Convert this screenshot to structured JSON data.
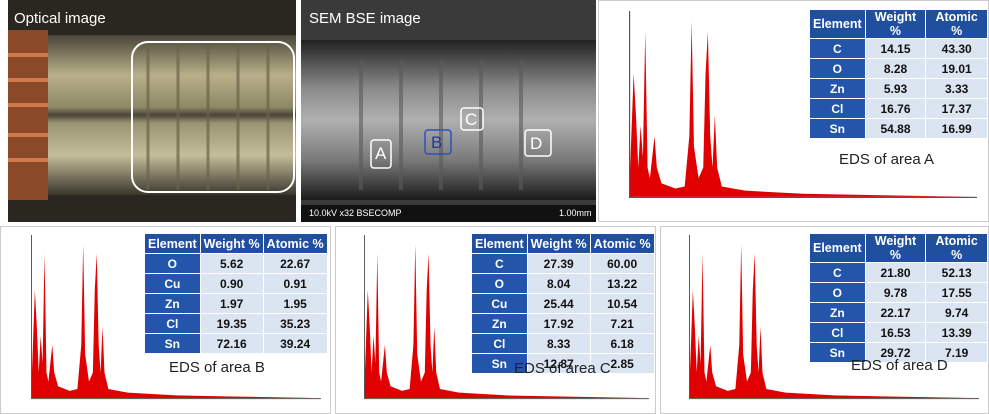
{
  "images": {
    "optical": {
      "label": "Optical image"
    },
    "sem": {
      "label": "SEM BSE image",
      "areas": [
        "A",
        "B",
        "C",
        "D"
      ],
      "footer": "10.0kV x32 BSECOMP",
      "scale": "1.00mm"
    }
  },
  "eds": [
    {
      "caption": "EDS of area A",
      "header": [
        "Element",
        "Weight %",
        "Atomic %"
      ],
      "rows": [
        [
          "C",
          "14.15",
          "43.30"
        ],
        [
          "O",
          "8.28",
          "19.01"
        ],
        [
          "Zn",
          "5.93",
          "3.33"
        ],
        [
          "Cl",
          "16.76",
          "17.37"
        ],
        [
          "Sn",
          "54.88",
          "16.99"
        ]
      ]
    },
    {
      "caption": "EDS of area B",
      "header": [
        "Element",
        "Weight %",
        "Atomic %"
      ],
      "rows": [
        [
          "O",
          "5.62",
          "22.67"
        ],
        [
          "Cu",
          "0.90",
          "0.91"
        ],
        [
          "Zn",
          "1.97",
          "1.95"
        ],
        [
          "Cl",
          "19.35",
          "35.23"
        ],
        [
          "Sn",
          "72.16",
          "39.24"
        ]
      ]
    },
    {
      "caption": "EDS of area C",
      "header": [
        "Element",
        "Weight %",
        "Atomic %"
      ],
      "rows": [
        [
          "C",
          "27.39",
          "60.00"
        ],
        [
          "O",
          "8.04",
          "13.22"
        ],
        [
          "Cu",
          "25.44",
          "10.54"
        ],
        [
          "Zn",
          "17.92",
          "7.21"
        ],
        [
          "Cl",
          "8.33",
          "6.18"
        ],
        [
          "Sn",
          "12.87",
          "2.85"
        ]
      ]
    },
    {
      "caption": "EDS of area D",
      "header": [
        "Element",
        "Weight %",
        "Atomic %"
      ],
      "rows": [
        [
          "C",
          "21.80",
          "52.13"
        ],
        [
          "O",
          "9.78",
          "17.55"
        ],
        [
          "Zn",
          "22.17",
          "9.74"
        ],
        [
          "Cl",
          "16.53",
          "13.39"
        ],
        [
          "Sn",
          "29.72",
          "7.19"
        ]
      ]
    }
  ]
}
